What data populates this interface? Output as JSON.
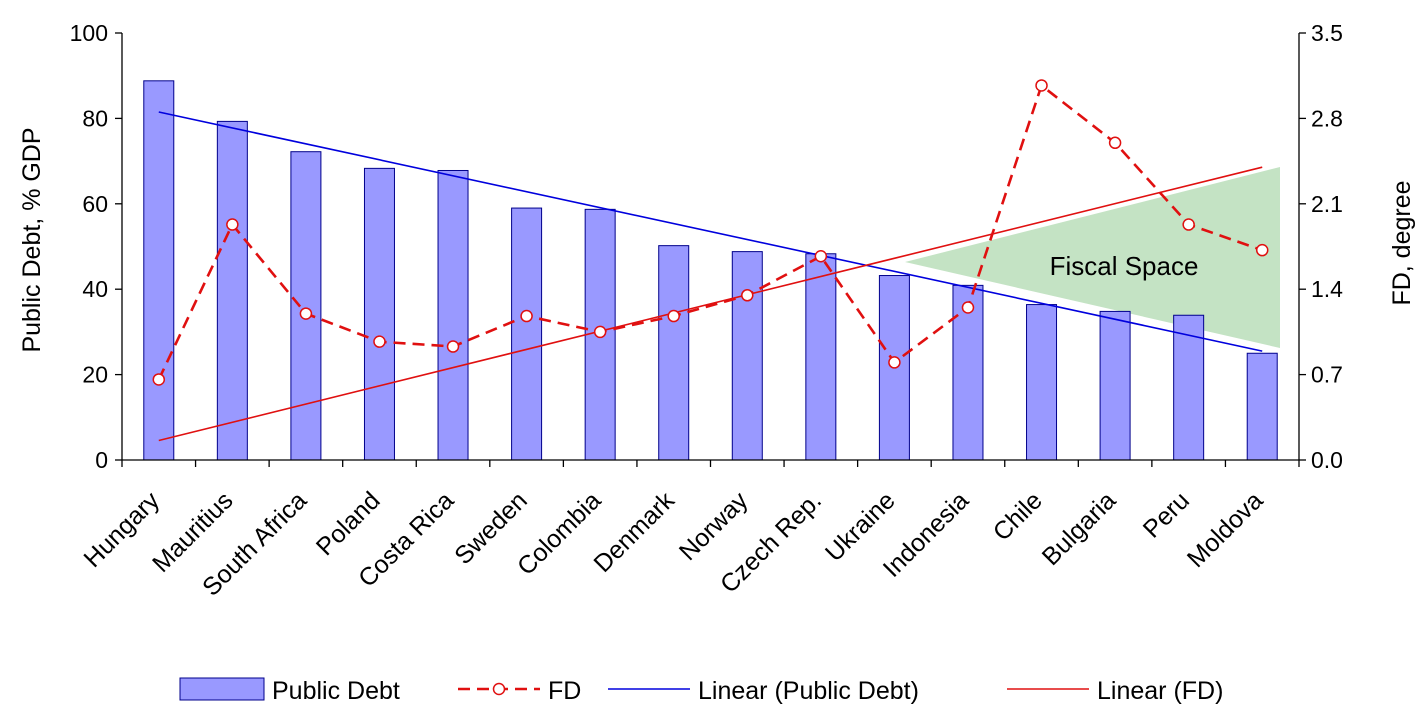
{
  "chart_data": {
    "type": "bar",
    "categories": [
      "Hungary",
      "Mauritius",
      "South Africa",
      "Poland",
      "Costa Rica",
      "Sweden",
      "Colombia",
      "Denmark",
      "Norway",
      "Czech Rep.",
      "Ukraine",
      "Indonesia",
      "Chile",
      "Bulgaria",
      "Peru",
      "Moldova"
    ],
    "series": [
      {
        "name": "Public Debt",
        "kind": "bar",
        "axis": "left",
        "color": "#9999ff",
        "border": "#00008b",
        "values": [
          88.8,
          79.3,
          72.2,
          68.3,
          67.8,
          59.0,
          58.7,
          50.2,
          48.8,
          48.3,
          43.2,
          40.9,
          36.4,
          34.8,
          33.9,
          25.0
        ]
      },
      {
        "name": "FD",
        "kind": "line-markers",
        "axis": "right",
        "color": "#e01010",
        "values": [
          0.66,
          1.93,
          1.2,
          0.97,
          0.93,
          1.18,
          1.05,
          1.18,
          1.35,
          1.67,
          0.8,
          1.25,
          3.07,
          2.6,
          1.93,
          1.72
        ]
      },
      {
        "name": "Linear (Public Debt)",
        "kind": "trend",
        "axis": "left",
        "color": "#0000dd",
        "start": 81.5,
        "end": 25.5
      },
      {
        "name": "Linear (FD)",
        "kind": "trend",
        "axis": "right",
        "color": "#e01010",
        "start": 0.16,
        "end": 2.4
      }
    ],
    "annotation": {
      "text": "Fiscal Space",
      "color": "#c4e3c4"
    },
    "left_axis": {
      "label": "Public Debt, % GDP",
      "min": 0,
      "max": 100,
      "ticks": [
        "0",
        "20",
        "40",
        "60",
        "80",
        "100"
      ]
    },
    "right_axis": {
      "label": "FD, degree",
      "min": 0,
      "max": 3.5,
      "ticks": [
        "0.0",
        "0.7",
        "1.4",
        "2.1",
        "2.8",
        "3.5"
      ]
    },
    "legend": {
      "position": "bottom",
      "entries": [
        "Public Debt",
        "FD",
        "Linear (Public Debt)",
        "Linear (FD)"
      ]
    }
  }
}
